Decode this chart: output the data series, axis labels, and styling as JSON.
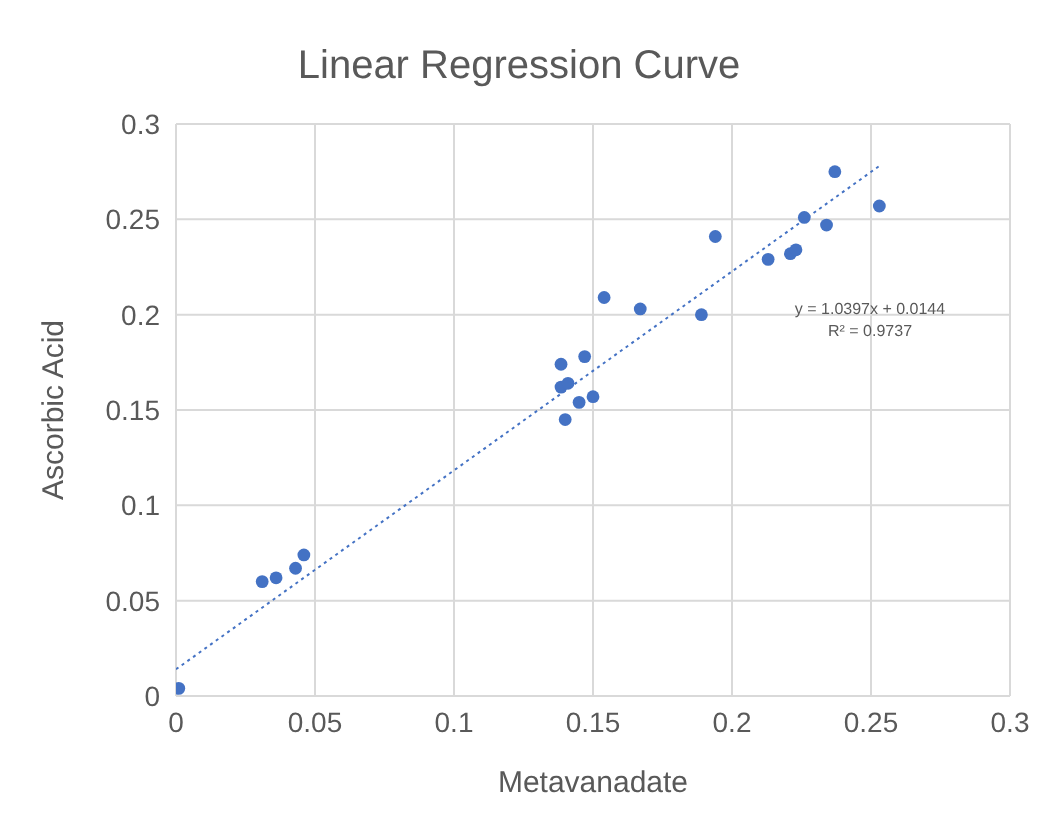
{
  "chart_data": {
    "type": "scatter",
    "title": "Linear Regression Curve",
    "xlabel": "Metavanadate",
    "ylabel": "Ascorbic Acid",
    "xlim": [
      0,
      0.3
    ],
    "xticks": [
      0,
      0.05,
      0.1,
      0.15,
      0.2,
      0.25,
      0.3
    ],
    "ylim": [
      0,
      0.3
    ],
    "yticks": [
      0,
      0.05,
      0.1,
      0.15,
      0.2,
      0.25,
      0.3
    ],
    "grid": true,
    "annotations": [
      "y = 1.0397x + 0.0144",
      "R² = 0.9737"
    ],
    "series": [
      {
        "color": "#4472c4",
        "marker": "circle",
        "x": [
          0.001,
          0.031,
          0.036,
          0.043,
          0.046,
          0.1385,
          0.1385,
          0.141,
          0.14,
          0.145,
          0.147,
          0.15,
          0.154,
          0.167,
          0.189,
          0.194,
          0.213,
          0.221,
          0.223,
          0.226,
          0.234,
          0.237,
          0.253
        ],
        "values": [
          0.004,
          0.06,
          0.062,
          0.067,
          0.074,
          0.174,
          0.162,
          0.164,
          0.145,
          0.154,
          0.178,
          0.157,
          0.209,
          0.203,
          0.2,
          0.241,
          0.229,
          0.232,
          0.234,
          0.251,
          0.247,
          0.275,
          0.257
        ]
      },
      {
        "type": "line",
        "color": "#4472c4",
        "line_style": "dotted",
        "x": [
          0,
          0.253
        ],
        "values": [
          0.014,
          0.278
        ]
      }
    ]
  }
}
